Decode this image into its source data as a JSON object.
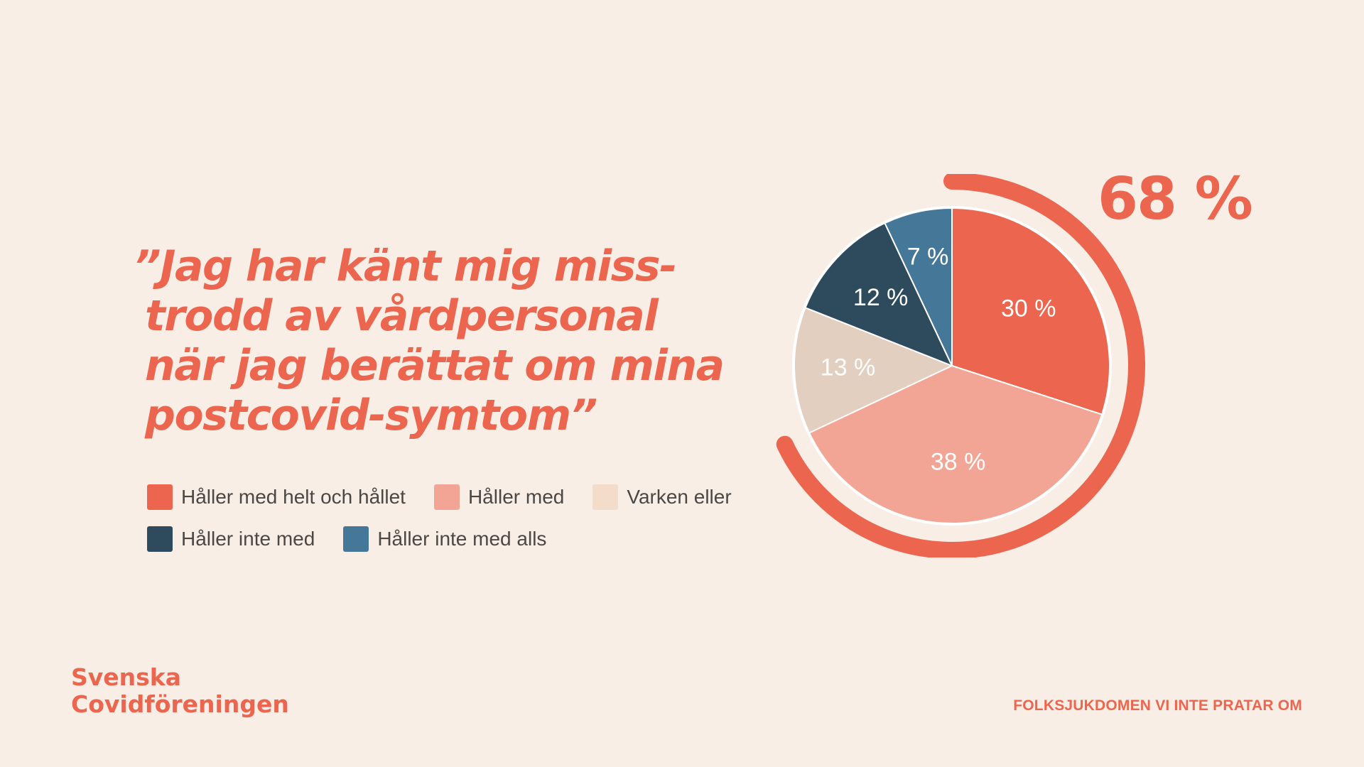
{
  "quote": {
    "lines": [
      "”Jag har känt mig miss-",
      "trodd av vårdpersonal",
      "när jag berättat om mina",
      "postcovid-symtom”"
    ]
  },
  "highlight": {
    "value": 68,
    "label": "68 %"
  },
  "brand": {
    "line1": "Svenska",
    "line2": "Covidföreningen"
  },
  "footer": {
    "tagline": "FOLKSJUKDOMEN VI INTE PRATAR OM"
  },
  "colors": {
    "accent": "#ec664f",
    "background": "#f8eee6"
  },
  "chart_data": {
    "type": "pie",
    "start": "top",
    "direction": "clockwise",
    "categories": [
      "Håller med helt och hållet",
      "Håller med",
      "Varken eller",
      "Håller inte med",
      "Håller inte med alls"
    ],
    "values": [
      30,
      38,
      13,
      12,
      7
    ],
    "value_labels": [
      "30 %",
      "38 %",
      "13 %",
      "12 %",
      "7 %"
    ],
    "colors": [
      "#ec664f",
      "#f2a594",
      "#e2cfc0",
      "#2e4b5e",
      "#457798"
    ],
    "label_colors": [
      "#ffffff",
      "#ffffff",
      "#ffffff",
      "#ffffff",
      "#ffffff"
    ],
    "highlight_arc": {
      "value": 68,
      "label": "68 %",
      "color": "#ec664f",
      "covers": [
        "Håller med helt och hållet",
        "Håller med"
      ]
    },
    "legend": {
      "placement": "left",
      "rows": [
        [
          0,
          1,
          2
        ],
        [
          3,
          4
        ]
      ]
    }
  }
}
